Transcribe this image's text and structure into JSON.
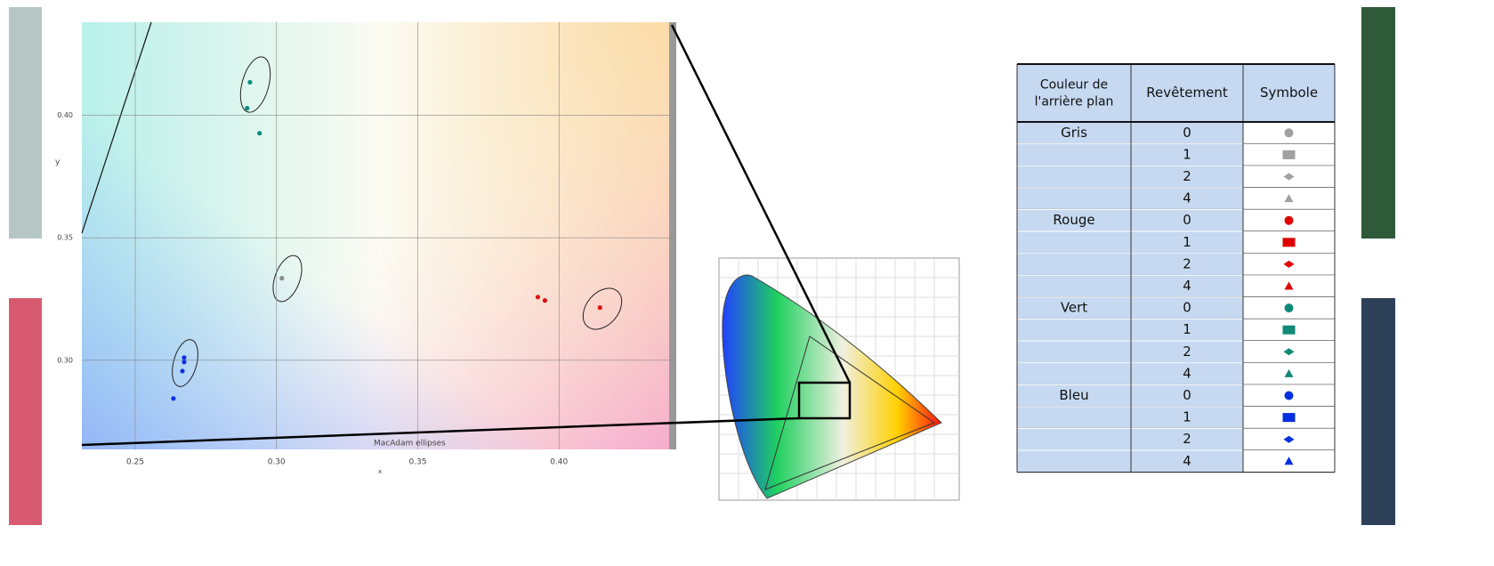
{
  "chart_data": {
    "type": "scatter",
    "xlabel": "x",
    "ylabel": "y",
    "annotation": "MacAdam ellipses",
    "xlim": [
      0.2311,
      0.4415
    ],
    "ylim": [
      0.2636,
      0.438
    ],
    "xticks": [
      0.25,
      {
        "value": 0.3,
        "label": "0.30"
      },
      0.35,
      {
        "value": 0.4,
        "label": "0.40"
      }
    ],
    "yticks": [
      {
        "value": 0.3,
        "label": "0.30"
      },
      0.35,
      {
        "value": 0.4,
        "label": "0.40"
      }
    ],
    "grid": true,
    "series": [
      {
        "color": "#0a8a80",
        "x": [
          0.2906,
          0.2896,
          0.294
        ],
        "values": [
          0.4135,
          0.4029,
          0.3927
        ]
      },
      {
        "color": "#8a8a8a",
        "x": [
          0.3019
        ],
        "values": [
          0.3335
        ]
      },
      {
        "color": "#e01010",
        "x": [
          0.3925,
          0.395,
          0.4145
        ],
        "values": [
          0.3258,
          0.3244,
          0.3215
        ]
      },
      {
        "color": "#1030e0",
        "x": [
          0.2673,
          0.2673,
          0.2667,
          0.2635
        ],
        "values": [
          0.3011,
          0.2993,
          0.2956,
          0.2844
        ]
      }
    ]
  },
  "table": {
    "header": [
      "Couleur de l'arrière plan",
      "Revêtement",
      "Symbole"
    ],
    "groups": [
      {
        "name": "Gris",
        "color": "#a0a0a0",
        "rows": [
          0,
          1,
          2,
          4
        ]
      },
      {
        "name": "Rouge",
        "color": "#e00000",
        "rows": [
          0,
          1,
          2,
          4
        ]
      },
      {
        "name": "Vert",
        "color": "#108a78",
        "rows": [
          0,
          1,
          2,
          4
        ]
      },
      {
        "name": "Bleu",
        "color": "#0030e0",
        "rows": [
          0,
          1,
          2,
          4
        ]
      }
    ]
  }
}
